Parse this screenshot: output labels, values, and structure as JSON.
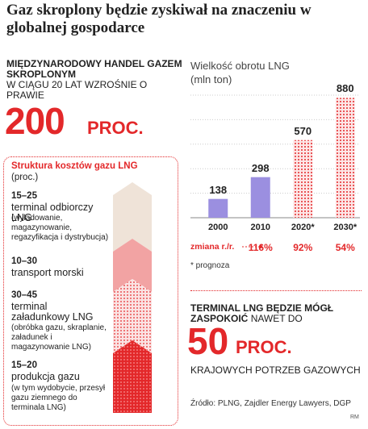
{
  "title": "Gaz skroplony będzie zyskiwał na znaczeniu w globalnej gospodarce",
  "intro": {
    "bold_line": "MIĘDZYNARODOWY HANDEL GAZEM SKROPLONYM",
    "plain_line": "W CIĄGU 20 LAT WZROŚNIE O PRAWIE",
    "big_number": "200",
    "big_unit": "PROC."
  },
  "structure": {
    "title": "Struktura kosztów gazu LNG",
    "subtitle": "(proc.)",
    "segments": [
      {
        "range": "15–25",
        "label": "terminal odbiorczy LNG",
        "note": "(wyładowanie, magazynowanie, regazyfikacja i dystrybucja)",
        "low": 15,
        "high": 25,
        "color": "#efe3d8"
      },
      {
        "range": "10–30",
        "label": "transport morski",
        "note": "",
        "low": 10,
        "high": 30,
        "color": "#f2a3a3"
      },
      {
        "range": "30–45",
        "label": "terminal załadunkowy LNG",
        "note": "(obróbka gazu, skraplanie, załadunek i magazynowanie LNG)",
        "low": 30,
        "high": 45,
        "color": "#f5c4c4"
      },
      {
        "range": "15–20",
        "label": "produkcja gazu",
        "note": "(w tym wydobycie, przesył gazu ziemnego do terminala LNG)",
        "low": 15,
        "high": 20,
        "color": "#e3282a"
      }
    ]
  },
  "chart_data": {
    "type": "bar",
    "title": "Wielkość obrotu LNG",
    "ylabel": "(mln ton)",
    "categories": [
      "2000",
      "2010",
      "2020*",
      "2030*"
    ],
    "values": [
      138,
      298,
      570,
      880
    ],
    "ylim": [
      0,
      900
    ],
    "bar_colors": [
      "#9b8fe0",
      "#9b8fe0",
      "#e3282a",
      "#e3282a"
    ],
    "change_label": "zmiana r./r.",
    "changes": [
      "",
      "116%",
      "92%",
      "54%"
    ],
    "footnote": "* prognoza",
    "grid": true
  },
  "terminal": {
    "bold": "TERMINAL LNG BĘDZIE MÓGŁ ZASPOKOIĆ",
    "plain": "NAWET DO",
    "big_number": "50",
    "big_unit": "PROC.",
    "tail": "KRAJOWYCH POTRZEB GAZOWYCH"
  },
  "source": "Źródło: PLNG, Zajdler Energy Lawyers, DGP",
  "credit": "RM"
}
